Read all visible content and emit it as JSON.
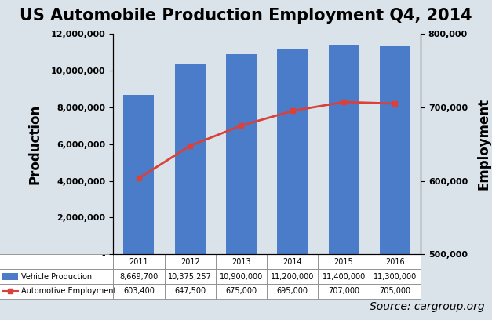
{
  "chart_data": {
    "type": "bar",
    "title": "US Automobile Production Employment Q4, 2014",
    "y_label": "Production",
    "y2_label": "Employment",
    "source": "Source: cargroup.org",
    "categories": [
      "2011",
      "2012",
      "2013",
      "2014",
      "2015",
      "2016"
    ],
    "series": [
      {
        "name": "Vehicle Production",
        "type": "bar",
        "color": "#4a7cc9",
        "values": [
          8669700,
          10375257,
          10900000,
          11200000,
          11400000,
          11300000
        ],
        "value_labels": [
          "8,669,700",
          "10,375,257",
          "10,900,000",
          "11,200,000",
          "11,400,000",
          "11,300,000"
        ]
      },
      {
        "name": "Automotive Employment",
        "type": "line",
        "color": "#d9413a",
        "marker": "square",
        "line_style": "solid",
        "axis": "y2",
        "values": [
          603400,
          647500,
          675000,
          695000,
          707000,
          705000
        ],
        "value_labels": [
          "603,400",
          "647,500",
          "675,000",
          "695,000",
          "707,000",
          "705,000"
        ]
      }
    ],
    "ylim": [
      0,
      12000000
    ],
    "yticks": [
      {
        "value": 0,
        "label": "-"
      },
      {
        "value": 2000000,
        "label": "2,000,000"
      },
      {
        "value": 4000000,
        "label": "4,000,000"
      },
      {
        "value": 6000000,
        "label": "6,000,000"
      },
      {
        "value": 8000000,
        "label": "8,000,000"
      },
      {
        "value": 10000000,
        "label": "10,000,000"
      },
      {
        "value": 12000000,
        "label": "12,000,000"
      }
    ],
    "y2lim": [
      500000,
      800000
    ],
    "y2ticks": [
      {
        "value": 500000,
        "label": "500,000"
      },
      {
        "value": 600000,
        "label": "600,000"
      },
      {
        "value": 700000,
        "label": "700,000"
      },
      {
        "value": 800000,
        "label": "800,000"
      }
    ],
    "grid": false
  }
}
